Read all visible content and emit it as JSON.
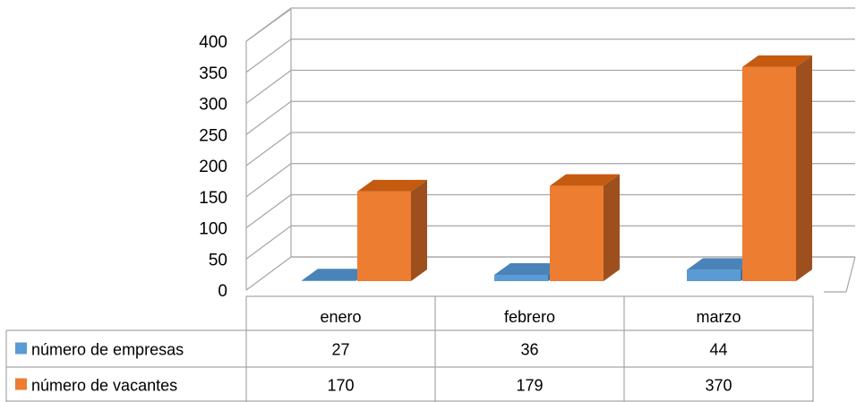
{
  "chart_data": {
    "type": "bar",
    "style": "3d-clustered-column-with-data-table",
    "categories": [
      "enero",
      "febrero",
      "marzo"
    ],
    "series": [
      {
        "name": "número de empresas",
        "values": [
          27,
          36,
          44
        ],
        "color": "#5B9BD5",
        "side_color": "#41719C",
        "top_color": "#4A83B8"
      },
      {
        "name": "número de vacantes",
        "values": [
          170,
          179,
          370
        ],
        "color": "#ED7D31",
        "side_color": "#9E4F1E",
        "top_color": "#C55A11"
      }
    ],
    "y_ticks": [
      "0",
      "50",
      "100",
      "150",
      "200",
      "250",
      "300",
      "350",
      "400"
    ],
    "ylim": [
      0,
      400
    ],
    "grid": true,
    "legend": "data-table",
    "data_table": {
      "rows": [
        {
          "label": "número de empresas",
          "cells": [
            "27",
            "36",
            "44"
          ]
        },
        {
          "label": "número de vacantes",
          "cells": [
            "170",
            "179",
            "370"
          ]
        }
      ]
    }
  }
}
